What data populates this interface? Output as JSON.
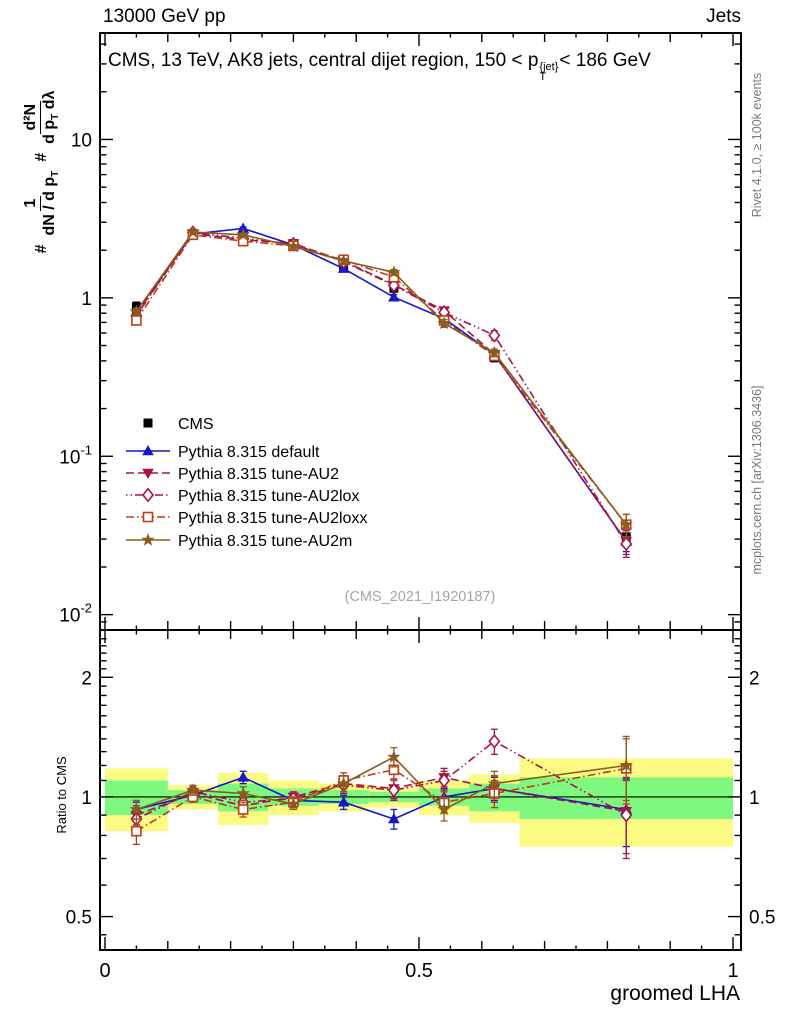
{
  "header": {
    "beam": "13000 GeV pp",
    "analysis": "Jets"
  },
  "title": {
    "prefix": "CMS, 13 TeV, AK8 jets, central dijet region, 150 < p",
    "sup": "{jet}",
    "sub": "T",
    "suffix": "< 186 GeV"
  },
  "ylabel": {
    "hash1": "#",
    "f1num": "1",
    "f1den_main": "dN / d p",
    "f1den_sub": "T",
    "hash2": "#",
    "f2num": "d²N",
    "f2den_a": "d p",
    "f2den_sub": "T",
    "f2den_b": " dλ"
  },
  "notes": {
    "rivet": "Rivet 4.1.0, ≥ 100k events",
    "mcplots": "mcplots.cern.ch [arXiv:1306.3436]"
  },
  "watermark": "(CMS_2021_I1920187)",
  "ratio_label": "Ratio to CMS",
  "xlabel": "groomed LHA",
  "chart_data": {
    "type": "line",
    "title": "CMS, 13 TeV, AK8 jets, central dijet region, 150 < pT(jet) < 186 GeV",
    "xlabel": "groomed LHA",
    "x_range": [
      0,
      1
    ],
    "x_ticks": [
      {
        "v": 0,
        "label": "0"
      },
      {
        "v": 0.5,
        "label": "0.5"
      },
      {
        "v": 1,
        "label": "1"
      }
    ],
    "main_axis": {
      "scale": "log",
      "range": [
        0.008,
        47
      ],
      "ticks": [
        {
          "v": 10,
          "base": "10",
          "exp": ""
        },
        {
          "v": 1,
          "base": "1",
          "exp": ""
        },
        {
          "v": 0.1,
          "base": "10",
          "exp": "-1"
        },
        {
          "v": 0.01,
          "base": "10",
          "exp": "-2"
        }
      ]
    },
    "ratio_axis": {
      "scale": "log",
      "range": [
        0.412,
        2.63
      ],
      "ticks": [
        {
          "v": 2,
          "label": "2"
        },
        {
          "v": 1,
          "label": "1"
        },
        {
          "v": 0.5,
          "label": "0.5"
        }
      ]
    },
    "bin_centers": [
      0.05,
      0.14,
      0.22,
      0.3,
      0.38,
      0.46,
      0.54,
      0.62,
      0.83
    ],
    "bin_edges": [
      0,
      0.1,
      0.18,
      0.26,
      0.34,
      0.42,
      0.5,
      0.58,
      0.66,
      1.0
    ],
    "series": [
      {
        "name": "CMS",
        "color": "#000000",
        "marker": "square-filled",
        "line": "none",
        "values": [
          0.88,
          2.5,
          2.45,
          2.2,
          1.58,
          1.15,
          0.74,
          0.42,
          0.031
        ],
        "errors": [
          0.06,
          0.1,
          0.1,
          0.09,
          0.07,
          0.06,
          0.04,
          0.025,
          0.004
        ]
      },
      {
        "name": "Pythia 8.315 default",
        "color": "#1717c8",
        "marker": "triangle-up",
        "line": "solid",
        "values": [
          0.82,
          2.53,
          2.74,
          2.16,
          1.53,
          1.01,
          0.74,
          0.44,
          0.029
        ],
        "errors": [
          0.03,
          0.05,
          0.06,
          0.05,
          0.05,
          0.04,
          0.03,
          0.02,
          0.004
        ],
        "ratio": [
          0.93,
          1.01,
          1.12,
          0.98,
          0.97,
          0.88,
          1.0,
          1.05,
          0.93
        ],
        "ratio_errors": [
          0.04,
          0.03,
          0.04,
          0.03,
          0.04,
          0.05,
          0.05,
          0.07,
          0.18
        ]
      },
      {
        "name": "Pythia 8.315 tune-AU2",
        "color": "#aa1144",
        "marker": "triangle-down",
        "line": "dashed",
        "values": [
          0.79,
          2.55,
          2.33,
          2.2,
          1.71,
          1.21,
          0.83,
          0.44,
          0.029
        ],
        "errors": [
          0.04,
          0.05,
          0.05,
          0.05,
          0.06,
          0.05,
          0.04,
          0.025,
          0.005
        ],
        "ratio": [
          0.9,
          1.02,
          0.95,
          1.0,
          1.08,
          1.05,
          1.12,
          1.05,
          0.92
        ],
        "ratio_errors": [
          0.05,
          0.03,
          0.04,
          0.03,
          0.05,
          0.06,
          0.06,
          0.08,
          0.2
        ]
      },
      {
        "name": "Pythia 8.315 tune-AU2lox",
        "color": "#a5154a",
        "marker": "diamond-open",
        "line": "dashdot",
        "values": [
          0.77,
          2.58,
          2.38,
          2.18,
          1.69,
          1.2,
          0.81,
          0.58,
          0.028
        ],
        "errors": [
          0.04,
          0.05,
          0.05,
          0.05,
          0.06,
          0.05,
          0.04,
          0.04,
          0.005
        ],
        "ratio": [
          0.88,
          1.03,
          0.97,
          0.99,
          1.07,
          1.04,
          1.1,
          1.38,
          0.9
        ],
        "ratio_errors": [
          0.05,
          0.03,
          0.04,
          0.03,
          0.05,
          0.06,
          0.06,
          0.1,
          0.2
        ]
      },
      {
        "name": "Pythia 8.315 tune-AU2loxx",
        "color": "#bc3e17",
        "marker": "square-open",
        "line": "dashdotdot",
        "values": [
          0.72,
          2.5,
          2.28,
          2.13,
          1.74,
          1.35,
          0.72,
          0.43,
          0.037
        ],
        "errors": [
          0.04,
          0.05,
          0.05,
          0.05,
          0.06,
          0.06,
          0.04,
          0.025,
          0.006
        ],
        "ratio": [
          0.82,
          1.0,
          0.93,
          0.97,
          1.1,
          1.17,
          0.97,
          1.02,
          1.18
        ],
        "ratio_errors": [
          0.06,
          0.03,
          0.04,
          0.03,
          0.05,
          0.07,
          0.06,
          0.08,
          0.22
        ]
      },
      {
        "name": "Pythia 8.315 tune-AU2m",
        "color": "#8a5c1e",
        "marker": "star-filled",
        "line": "solid",
        "values": [
          0.82,
          2.6,
          2.5,
          2.11,
          1.71,
          1.45,
          0.69,
          0.45,
          0.037
        ],
        "errors": [
          0.04,
          0.05,
          0.05,
          0.05,
          0.06,
          0.06,
          0.04,
          0.025,
          0.006
        ],
        "ratio": [
          0.93,
          1.04,
          1.02,
          0.96,
          1.08,
          1.26,
          0.93,
          1.08,
          1.2
        ],
        "ratio_errors": [
          0.05,
          0.03,
          0.04,
          0.03,
          0.05,
          0.07,
          0.06,
          0.08,
          0.22
        ]
      }
    ],
    "ratio_bands": {
      "yellow_color": "#fbfb84",
      "green_color": "#7ef87e",
      "bins": [
        {
          "yellow": [
            0.82,
            1.18
          ],
          "green": [
            0.9,
            1.1
          ]
        },
        {
          "yellow": [
            0.93,
            1.07
          ],
          "green": [
            0.96,
            1.04
          ]
        },
        {
          "yellow": [
            0.85,
            1.15
          ],
          "green": [
            0.92,
            1.08
          ]
        },
        {
          "yellow": [
            0.9,
            1.1
          ],
          "green": [
            0.95,
            1.05
          ]
        },
        {
          "yellow": [
            0.92,
            1.08
          ],
          "green": [
            0.96,
            1.04
          ]
        },
        {
          "yellow": [
            0.94,
            1.06
          ],
          "green": [
            0.97,
            1.03
          ]
        },
        {
          "yellow": [
            0.9,
            1.1
          ],
          "green": [
            0.95,
            1.05
          ]
        },
        {
          "yellow": [
            0.86,
            1.14
          ],
          "green": [
            0.92,
            1.08
          ]
        },
        {
          "yellow": [
            0.75,
            1.25
          ],
          "green": [
            0.88,
            1.12
          ]
        }
      ]
    },
    "legend_position": "middle-left",
    "grid": false
  }
}
